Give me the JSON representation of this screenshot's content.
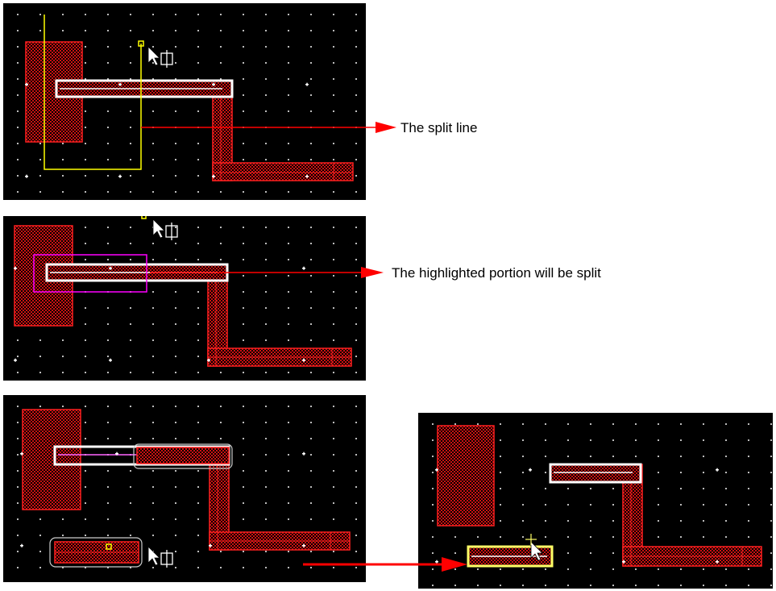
{
  "captions": {
    "split_line": "The split line",
    "highlighted": "The highlighted portion will be split"
  },
  "colors": {
    "canvas_bg": "#000000",
    "shape_outline": "#ff0000",
    "selected_path": "#ffffff",
    "split_line": "#ffff00",
    "highlight_box": "#ff00ff",
    "annotation_arrow": "#ff0000"
  },
  "icons": {
    "cursor": "pointer-arrow-with-split-icon",
    "move_cursor": "pointer-with-move-icon"
  }
}
